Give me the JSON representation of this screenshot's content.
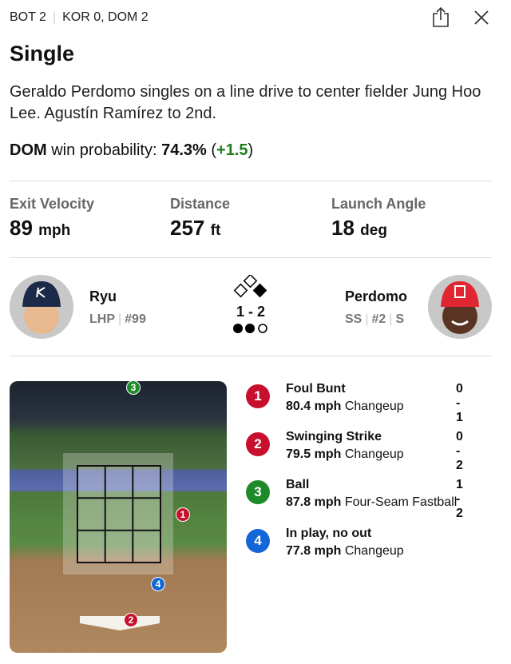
{
  "header": {
    "inning": "BOT 2",
    "score": "KOR 0, DOM 2",
    "share_icon": "share-icon",
    "close_icon": "close-icon"
  },
  "play": {
    "title": "Single",
    "description": "Geraldo Perdomo singles on a line drive to center fielder Jung Hoo Lee. Agustín Ramírez to 2nd.",
    "wp_team": "DOM",
    "wp_label": "win probability:",
    "wp_value": "74.3%",
    "wp_change": "+1.5"
  },
  "stats": [
    {
      "label": "Exit Velocity",
      "value": "89",
      "unit": "mph"
    },
    {
      "label": "Distance",
      "value": "257",
      "unit": "ft"
    },
    {
      "label": "Launch Angle",
      "value": "18",
      "unit": "deg"
    }
  ],
  "pitcher": {
    "name": "Ryu",
    "position": "LHP",
    "number": "#99"
  },
  "batter": {
    "name": "Perdomo",
    "position": "SS",
    "number": "#2",
    "bats": "S"
  },
  "situation": {
    "count": "1 - 2",
    "bases": {
      "first": true,
      "second": false,
      "third": false
    },
    "outs": 2
  },
  "colors": {
    "ball": "#1e8a2a",
    "strike": "#c8102e",
    "in_play": "#1466d6",
    "positive": "#1a7f1a"
  },
  "pitches": [
    {
      "num": "1",
      "result": "Foul Bunt",
      "count": "0 - 1",
      "speed": "80.4 mph",
      "type": "Changeup",
      "color": "#c8102e"
    },
    {
      "num": "2",
      "result": "Swinging Strike",
      "count": "0 - 2",
      "speed": "79.5 mph",
      "type": "Changeup",
      "color": "#c8102e"
    },
    {
      "num": "3",
      "result": "Ball",
      "count": "1 - 2",
      "speed": "87.8 mph",
      "type": "Four-Seam Fastball",
      "color": "#1e8a2a"
    },
    {
      "num": "4",
      "result": "In play, no out",
      "count": "",
      "speed": "77.8 mph",
      "type": "Changeup",
      "color": "#1466d6"
    }
  ]
}
